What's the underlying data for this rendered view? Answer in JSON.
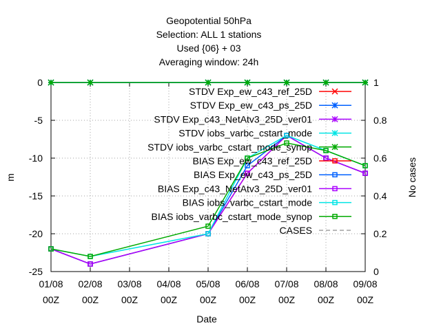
{
  "chart_data": {
    "type": "line",
    "title_lines": [
      "Geopotential 50hPa",
      "Selection: ALL      1 stations",
      "Used {06} + 03",
      "Averaging window: 24h"
    ],
    "xlabel": "Date",
    "ylabel": "m",
    "y2label": "No cases",
    "categories": [
      "01/08",
      "02/08",
      "03/08",
      "04/08",
      "05/08",
      "06/08",
      "07/08",
      "08/08",
      "09/08"
    ],
    "category_sublabel": "00Z",
    "ylim": [
      -25,
      0
    ],
    "yticks": [
      0,
      -5,
      -10,
      -15,
      -20,
      -25
    ],
    "ytick_labels": [
      "0",
      "-5",
      "-10",
      "-15",
      "-20",
      "-25"
    ],
    "y2lim": [
      0,
      1
    ],
    "y2ticks": [
      1,
      0.8,
      0.6,
      0.4,
      0.2,
      0
    ],
    "y2tick_labels": [
      "1",
      "0.8",
      "0.6",
      "0.4",
      "0.2",
      "0"
    ],
    "grid": true,
    "legend_position": "inside-top-right",
    "series": [
      {
        "name": "STDV Exp_ew_c43_ref_25D",
        "color": "#ff0000",
        "marker": "x",
        "axis": "y1",
        "x": [
          "01/08",
          "02/08",
          "05/08",
          "06/08",
          "07/08",
          "08/08",
          "09/08"
        ],
        "values": [
          0,
          0,
          0,
          0,
          0,
          0,
          0
        ]
      },
      {
        "name": "STDV Exp_ew_c43_ps_25D",
        "color": "#0060ff",
        "marker": "star",
        "axis": "y1",
        "x": [
          "01/08",
          "02/08",
          "05/08",
          "06/08",
          "07/08",
          "08/08",
          "09/08"
        ],
        "values": [
          0,
          0,
          0,
          0,
          0,
          0,
          0
        ]
      },
      {
        "name": "STDV Exp_c43_NetAtv3_25D_ver01",
        "color": "#aa00ff",
        "marker": "star",
        "axis": "y1",
        "x": [
          "01/08",
          "02/08",
          "05/08",
          "06/08",
          "07/08",
          "08/08",
          "09/08"
        ],
        "values": [
          0,
          0,
          0,
          0,
          0,
          0,
          0
        ]
      },
      {
        "name": "STDV iobs_varbc_cstart_mode",
        "color": "#00e5e5",
        "marker": "star",
        "axis": "y1",
        "x": [
          "01/08",
          "02/08",
          "05/08",
          "06/08",
          "07/08",
          "08/08",
          "09/08"
        ],
        "values": [
          0,
          0,
          0,
          0,
          0,
          0,
          0
        ]
      },
      {
        "name": "STDV iobs_varbc_cstart_mode_synop",
        "color": "#00aa00",
        "marker": "star",
        "axis": "y1",
        "x": [
          "01/08",
          "02/08",
          "05/08",
          "06/08",
          "07/08",
          "08/08",
          "09/08"
        ],
        "values": [
          0,
          0,
          0,
          0,
          0,
          0,
          0
        ]
      },
      {
        "name": "BIAS Exp_ew_c43_ref_25D",
        "color": "#ff0000",
        "marker": "square",
        "axis": "y1",
        "x": [
          "01/08",
          "02/08",
          "05/08",
          "06/08",
          "07/08",
          "08/08",
          "09/08"
        ],
        "values": [
          -22,
          -24,
          -20,
          -12,
          -7,
          -10,
          -12
        ]
      },
      {
        "name": "BIAS Exp_ew_c43_ps_25D",
        "color": "#0060ff",
        "marker": "square",
        "axis": "y1",
        "x": [
          "01/08",
          "02/08",
          "05/08",
          "06/08",
          "07/08",
          "08/08",
          "09/08"
        ],
        "values": [
          -22,
          -24,
          -20,
          -11,
          -7,
          -10,
          -12
        ]
      },
      {
        "name": "BIAS Exp_c43_NetAtv3_25D_ver01",
        "color": "#aa00ff",
        "marker": "square",
        "axis": "y1",
        "x": [
          "01/08",
          "02/08",
          "05/08",
          "06/08",
          "07/08",
          "08/08",
          "09/08"
        ],
        "values": [
          -22,
          -24,
          -20,
          -12,
          -7,
          -10,
          -12
        ]
      },
      {
        "name": "BIAS iobs_varbc_cstart_mode",
        "color": "#00e5e5",
        "marker": "square",
        "axis": "y1",
        "x": [
          "01/08",
          "02/08",
          "05/08",
          "06/08",
          "07/08",
          "08/08",
          "09/08"
        ],
        "values": [
          -22,
          -23,
          -20,
          -10,
          -7,
          -9,
          -11
        ]
      },
      {
        "name": "BIAS iobs_varbc_cstart_mode_synop",
        "color": "#00aa00",
        "marker": "square",
        "axis": "y1",
        "x": [
          "01/08",
          "02/08",
          "05/08",
          "06/08",
          "07/08",
          "08/08",
          "09/08"
        ],
        "values": [
          -22,
          -23,
          -19,
          -10,
          -8,
          -9,
          -11
        ]
      },
      {
        "name": "CASES",
        "color": "#a0a0a0",
        "marker": "none",
        "axis": "y2",
        "dashed": true,
        "x": [],
        "values": []
      }
    ]
  }
}
